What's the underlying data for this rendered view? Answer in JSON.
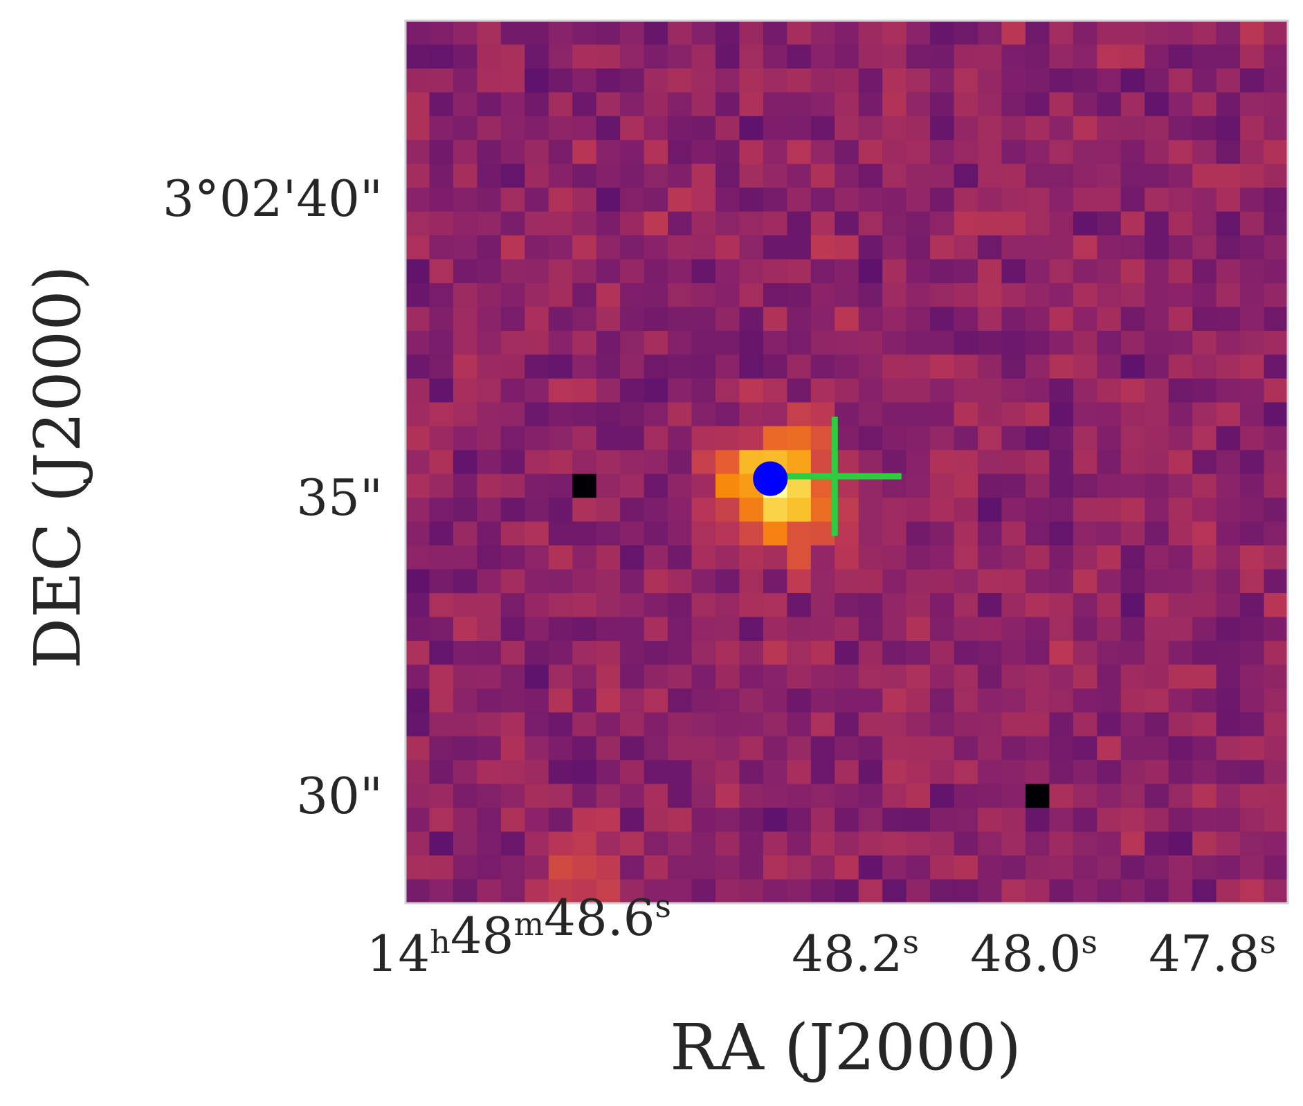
{
  "figure": {
    "xlabel": "RA (J2000)",
    "ylabel": "DEC (J2000)",
    "y_ticks": [
      {
        "text": "3°02'40\""
      },
      {
        "text": "35\""
      },
      {
        "text": "30\""
      }
    ],
    "x_ticks": [
      {
        "parts": [
          [
            "14",
            "h"
          ],
          [
            "48",
            "m"
          ],
          [
            "48.6",
            "s"
          ]
        ]
      },
      {
        "parts": [
          [
            "48.2",
            "s"
          ]
        ]
      },
      {
        "parts": [
          [
            "48.0",
            "s"
          ]
        ]
      },
      {
        "parts": [
          [
            "47.8",
            "s"
          ]
        ]
      }
    ]
  },
  "image": {
    "grid": [
      37,
      37
    ],
    "colormap": "inferno",
    "source_peak": {
      "col": 15.2,
      "row": 19.2
    },
    "secondary_source": {
      "col": 6.5,
      "row": 36.0
    },
    "masked_pixels": [
      {
        "col": 7,
        "row": 19
      },
      {
        "col": 26,
        "row": 32
      }
    ]
  },
  "markers": {
    "blue_dot": {
      "color": "#0000ff",
      "col": 15.3,
      "row": 19.2
    },
    "green_cross": {
      "color": "#2ecc40",
      "col": 18.0,
      "row": 19.1
    }
  },
  "colors": {
    "frame": "#cfcfd4"
  }
}
